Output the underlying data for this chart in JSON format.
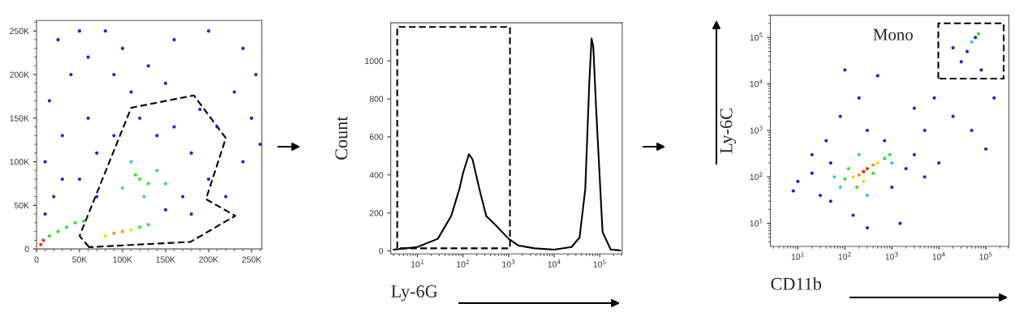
{
  "chart_data": [
    {
      "type": "scatter",
      "marker": "circle",
      "xlim": [
        0,
        262000
      ],
      "ylim": [
        0,
        262000
      ],
      "xticks": [
        0,
        {
          "value": 50000,
          "label": "50K"
        },
        {
          "value": 100000,
          "label": "100K"
        },
        {
          "value": 150000,
          "label": "150K"
        },
        {
          "value": 200000,
          "label": "200K"
        },
        {
          "value": 250000,
          "label": "250K"
        }
      ],
      "yticks": [
        0,
        {
          "value": 50000,
          "label": "50K"
        },
        {
          "value": 100000,
          "label": "100K"
        },
        {
          "value": 150000,
          "label": "150K"
        },
        {
          "value": 200000,
          "label": "200K"
        },
        {
          "value": 250000,
          "label": "250K"
        }
      ],
      "series": [
        {
          "x": [
            5000,
            8000,
            15000,
            25000,
            35000,
            45000,
            55000,
            90000,
            100000,
            110000,
            80000,
            120000,
            130000,
            120000,
            130000,
            115000,
            100000,
            140000,
            125000,
            110000,
            150000,
            20000,
            10000,
            30000,
            15000,
            40000,
            25000,
            60000,
            80000,
            100000,
            130000,
            160000,
            200000,
            240000,
            255000,
            230000,
            250000,
            210000,
            190000,
            160000,
            140000,
            90000,
            70000,
            50000,
            60000,
            110000,
            150000,
            180000,
            170000,
            200000,
            240000,
            260000,
            220000,
            180000,
            150000,
            70000,
            30000,
            10000,
            120000,
            90000,
            50000
          ],
          "values": [
            5000,
            10000,
            15000,
            20000,
            25000,
            30000,
            32000,
            18000,
            20000,
            22000,
            15000,
            25000,
            28000,
            80000,
            75000,
            85000,
            70000,
            90000,
            60000,
            100000,
            75000,
            60000,
            100000,
            130000,
            170000,
            200000,
            240000,
            220000,
            250000,
            230000,
            210000,
            240000,
            250000,
            230000,
            200000,
            180000,
            150000,
            140000,
            160000,
            140000,
            130000,
            130000,
            110000,
            80000,
            150000,
            180000,
            190000,
            110000,
            60000,
            80000,
            100000,
            120000,
            60000,
            40000,
            45000,
            60000,
            80000,
            40000,
            150000,
            200000,
            250000
          ],
          "colors": [
            "#ff3000",
            "#ff3000",
            "#30e030",
            "#30e030",
            "#30e030",
            "#30e030",
            "#30e030",
            "#ff9000",
            "#ff9000",
            "#e8e000",
            "#e8e000",
            "#30e030",
            "#30e030",
            "#30e030",
            "#30e030",
            "#30e030",
            "#30c8e8",
            "#30c8e8",
            "#30c8e8",
            "#30c8e8",
            "#30c8e8",
            "#2020e0",
            "#2020e0",
            "#2020e0",
            "#2020e0",
            "#2020e0",
            "#2020e0",
            "#2020e0",
            "#2020e0",
            "#2020e0",
            "#2020e0",
            "#2020e0",
            "#2020e0",
            "#2020e0",
            "#2020e0",
            "#2020e0",
            "#2020e0",
            "#2020e0",
            "#2020e0",
            "#2020e0",
            "#2020e0",
            "#2020e0",
            "#2020e0",
            "#2020e0",
            "#2020e0",
            "#2020e0",
            "#2020e0",
            "#2020e0",
            "#2020e0",
            "#2020e0",
            "#2020e0",
            "#2020e0",
            "#2020e0",
            "#2020e0",
            "#2020e0",
            "#2020e0",
            "#2020e0",
            "#2020e0",
            "#2020e0",
            "#2020e0",
            "#2020e0"
          ]
        }
      ]
    },
    {
      "type": "line",
      "log": "x",
      "xlabel": "Ly-6G",
      "ylabel": "Count",
      "xlim": [
        2.6,
        310000
      ],
      "ylim": [
        -15,
        1200
      ],
      "xticks": [
        {
          "value": 10,
          "label": "10$^{1}$"
        },
        {
          "value": 100,
          "label": "10$^{2}$"
        },
        {
          "value": 1000,
          "label": "10$^{3}$"
        },
        {
          "value": 10000,
          "label": "10$^{4}$"
        },
        {
          "value": 100000,
          "label": "10$^{5}$"
        }
      ],
      "yticks": [
        0,
        200,
        400,
        600,
        800,
        1000
      ],
      "series": [
        {
          "line_style": "solid",
          "color": "#000000",
          "x": [
            3,
            5.4,
            10,
            28,
            55,
            83,
            100,
            135,
            162,
            229,
            323,
            562,
            1000,
            1660,
            3700,
            10000,
            24000,
            36000,
            48000,
            59000,
            66000,
            72000,
            83000,
            115000,
            174000,
            282000
          ],
          "values": [
            7,
            14,
            21,
            64,
            184,
            325,
            410,
            509,
            481,
            325,
            184,
            127,
            64,
            28,
            14,
            7,
            21,
            71,
            325,
            891,
            1117,
            1075,
            750,
            99,
            7,
            3
          ]
        }
      ]
    },
    {
      "type": "scatter",
      "marker": "circle",
      "log": "xy",
      "xlabel": "CD11b",
      "ylabel": "Ly-6C",
      "xlim": [
        2.6,
        310000
      ],
      "ylim": [
        3.2,
        300000
      ],
      "xticks": [
        {
          "value": 10,
          "label": "10$^{1}$"
        },
        {
          "value": 100,
          "label": "10$^{2}$"
        },
        {
          "value": 1000,
          "label": "10$^{3}$"
        },
        {
          "value": 10000,
          "label": "10$^{4}$"
        },
        {
          "value": 100000,
          "label": "10$^{5}$"
        }
      ],
      "yticks": [
        {
          "value": 10,
          "label": "10$^{1}$"
        },
        {
          "value": 100,
          "label": "10$^{2}$"
        },
        {
          "value": 1000,
          "label": "10$^{3}$"
        },
        {
          "value": 10000,
          "label": "10$^{4}$"
        },
        {
          "value": 100000,
          "label": "10$^{5}$"
        }
      ],
      "annotations": [
        "Mono"
      ],
      "series": [
        {
          "x": [
            250,
            300,
            200,
            400,
            150,
            500,
            250,
            100,
            700,
            180,
            400,
            120,
            900,
            60,
            300,
            1000,
            200,
            80,
            20,
            10,
            30,
            50,
            40,
            80,
            100,
            200,
            300,
            500,
            700,
            1000,
            2000,
            3000,
            5000,
            10000,
            3000,
            5000,
            8000,
            20000,
            50000,
            100000,
            150000,
            1500,
            300,
            150,
            50,
            20,
            8,
            50000,
            60000,
            40000,
            70000,
            30000,
            80000,
            20000
          ],
          "values": [
            130,
            150,
            110,
            180,
            100,
            200,
            80,
            90,
            250,
            60,
            120,
            150,
            300,
            100,
            40,
            200,
            300,
            60,
            120,
            80,
            40,
            200,
            600,
            2000,
            20000,
            5000,
            1000,
            15000,
            600,
            60,
            150,
            300,
            100,
            200,
            3000,
            1000,
            5000,
            2000,
            1000,
            400,
            5000,
            10,
            8,
            15,
            30,
            300,
            50,
            80000,
            100000,
            50000,
            120000,
            30000,
            20000,
            60000
          ],
          "colors": [
            "#ff3000",
            "#ff3000",
            "#ff9000",
            "#ff9000",
            "#e8e000",
            "#e8e000",
            "#e8e000",
            "#30e030",
            "#30e030",
            "#30e030",
            "#30e030",
            "#30e030",
            "#30e030",
            "#30c8e8",
            "#30c8e8",
            "#30c8e8",
            "#30c8e8",
            "#30c8e8",
            "#2020e0",
            "#2020e0",
            "#2020e0",
            "#2020e0",
            "#2020e0",
            "#2020e0",
            "#2020e0",
            "#2020e0",
            "#2020e0",
            "#2020e0",
            "#2020e0",
            "#2020e0",
            "#2020e0",
            "#2020e0",
            "#2020e0",
            "#2020e0",
            "#2020e0",
            "#2020e0",
            "#2020e0",
            "#2020e0",
            "#2020e0",
            "#2020e0",
            "#2020e0",
            "#2020e0",
            "#2020e0",
            "#2020e0",
            "#2020e0",
            "#2020e0",
            "#2020e0",
            "#30c8e8",
            "#2020e0",
            "#2020e0",
            "#30e030",
            "#2020e0",
            "#2020e0",
            "#2020e0"
          ]
        }
      ]
    }
  ]
}
